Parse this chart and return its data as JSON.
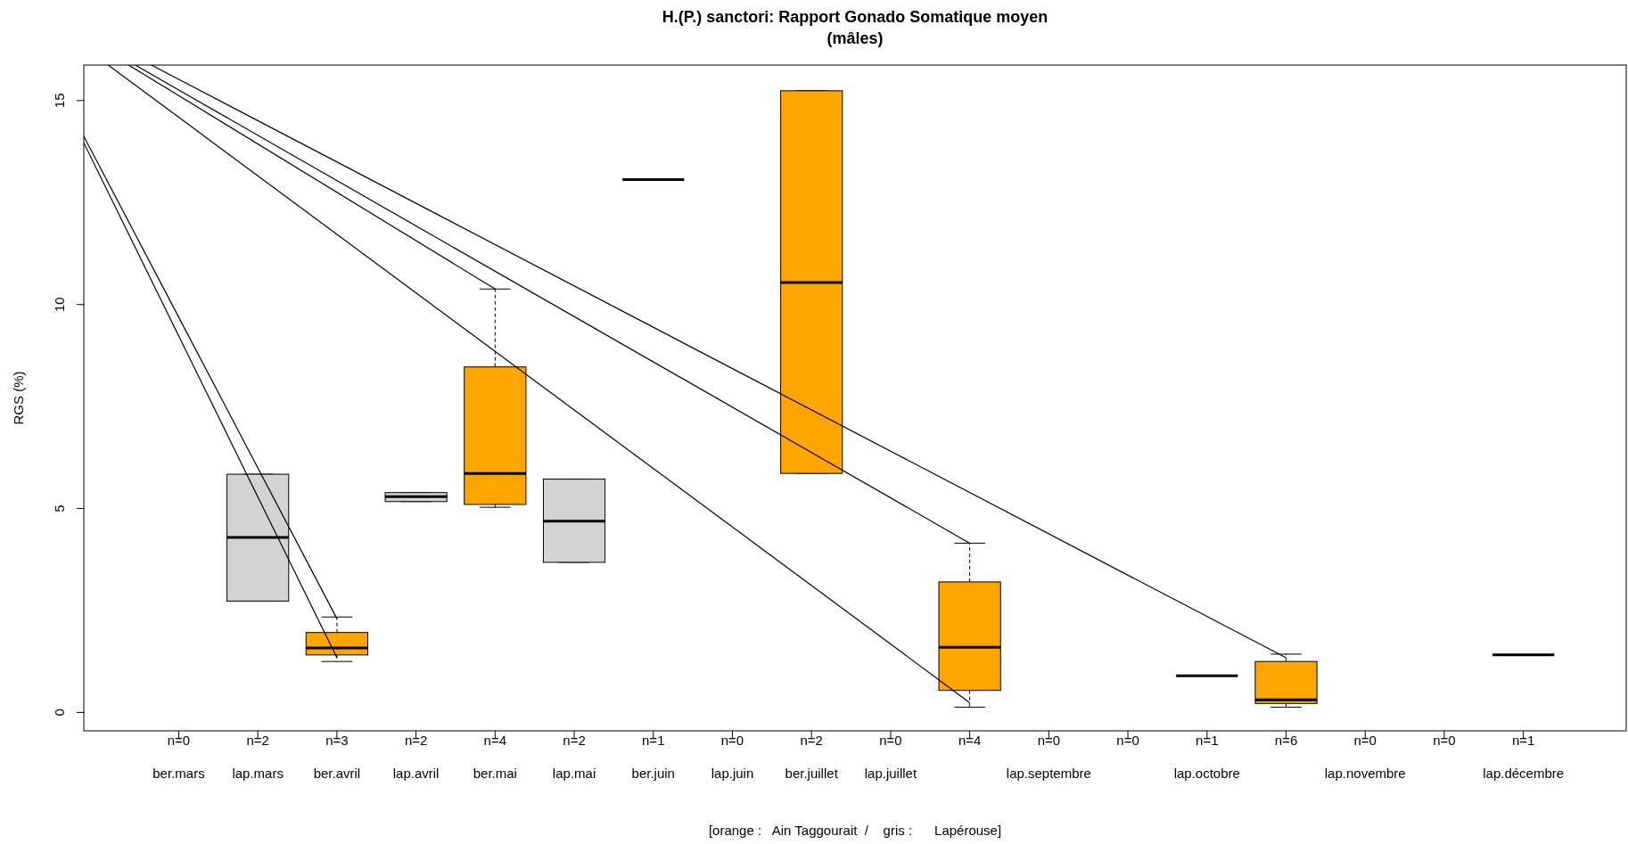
{
  "chart_data": {
    "type": "box",
    "title": "H.(P.) sanctori: Rapport Gonado Somatique moyen\n(mâles)",
    "ylabel": "RGS (%)",
    "categories": [
      "ber.mars",
      "lap.mars",
      "ber.avril",
      "lap.avril",
      "ber.mai",
      "lap.mai",
      "ber.juin",
      "lap.juin",
      "ber.juillet",
      "lap.juillet",
      null,
      "lap.septembre",
      null,
      "lap.octobre",
      null,
      "lap.novembre",
      null,
      "lap.décembre"
    ],
    "value_labels": [
      "n=0",
      "n=2",
      "n=3",
      "n=2",
      "n=4",
      "n=2",
      "n=1",
      "n=0",
      "n=2",
      "n=0",
      "n=4",
      "n=0",
      "n=0",
      "n=1",
      "n=6",
      "n=0",
      "n=0",
      "n=1"
    ],
    "ylim": [
      -0.45,
      15.87
    ],
    "yticks": [
      0,
      5,
      10,
      15
    ],
    "annotations": [
      "[orange :   Ain Taggourait  /    gris :      Lapérouse]"
    ],
    "series": [
      {
        "colors": [
          null,
          null,
          "#ffa500",
          null,
          "#ffa500",
          null,
          "#000000",
          null,
          "#ffa500",
          null,
          "#ffa500",
          null,
          null,
          null,
          "#ffa500",
          null,
          null,
          null
        ],
        "boxes": [
          null,
          null,
          {
            "low": 1.25,
            "q1": 1.41,
            "median": 1.58,
            "q3": 1.96,
            "high": 2.34
          },
          null,
          {
            "low": 5.03,
            "q1": 5.1,
            "median": 5.86,
            "q3": 8.47,
            "high": 10.38
          },
          null,
          {
            "low": 13.06,
            "q1": 13.06,
            "median": 13.06,
            "q3": 13.06,
            "high": 13.06
          },
          null,
          {
            "low": 5.86,
            "q1": 5.86,
            "median": 10.54,
            "q3": 15.24,
            "high": 15.24
          },
          null,
          {
            "low": 0.13,
            "q1": 0.54,
            "median": 1.6,
            "q3": 3.2,
            "high": 4.15
          },
          null,
          null,
          null,
          {
            "low": 0.13,
            "q1": 0.22,
            "median": 0.31,
            "q3": 1.25,
            "high": 1.43
          },
          null,
          null,
          null
        ]
      },
      {
        "colors": [
          null,
          "#d3d3d3",
          null,
          "#d3d3d3",
          null,
          "#d3d3d3",
          null,
          null,
          null,
          null,
          null,
          null,
          null,
          "#000000",
          null,
          null,
          null,
          "#000000"
        ],
        "boxes": [
          null,
          {
            "low": 2.73,
            "q1": 2.73,
            "median": 4.29,
            "q3": 5.84,
            "high": 5.84
          },
          null,
          {
            "low": 5.17,
            "q1": 5.17,
            "median": 5.29,
            "q3": 5.39,
            "high": 5.39
          },
          null,
          {
            "low": 3.68,
            "q1": 3.68,
            "median": 4.69,
            "q3": 5.72,
            "high": 5.72
          },
          null,
          null,
          null,
          null,
          null,
          null,
          null,
          {
            "low": 0.9,
            "q1": 0.9,
            "median": 0.9,
            "q3": 0.9,
            "high": 0.9
          },
          null,
          null,
          null,
          {
            "low": 1.41,
            "q1": 1.41,
            "median": 1.41,
            "q3": 1.41,
            "high": 1.41
          }
        ]
      },
      {
        "type": "line",
        "color": "#000000",
        "values": [
          9.69,
          null,
          2.3,
          null,
          null,
          null,
          null,
          null,
          null,
          null,
          null,
          null,
          null,
          null,
          null,
          null,
          null,
          null
        ]
      },
      {
        "type": "line",
        "color": "#000000",
        "values": [
          9.23,
          null,
          1.34,
          null,
          null,
          null,
          null,
          null,
          null,
          null,
          null,
          null,
          null,
          null,
          null,
          null,
          null,
          null
        ]
      },
      {
        "type": "line",
        "color": "#000000",
        "values": [
          14.59,
          null,
          null,
          null,
          null,
          null,
          null,
          null,
          null,
          null,
          0.24,
          null,
          null,
          null,
          null,
          null,
          null,
          null
        ]
      },
      {
        "type": "line",
        "color": "#000000",
        "values": [
          15.12,
          null,
          null,
          null,
          10.38,
          null,
          null,
          null,
          null,
          null,
          null,
          null,
          null,
          null,
          null,
          null,
          null,
          null
        ]
      },
      {
        "type": "line",
        "color": "#000000",
        "values": [
          15.26,
          null,
          null,
          null,
          null,
          null,
          null,
          null,
          null,
          null,
          4.15,
          null,
          null,
          null,
          null,
          null,
          null,
          null
        ]
      },
      {
        "type": "line",
        "color": "#000000",
        "values": [
          15.52,
          null,
          null,
          null,
          null,
          null,
          null,
          null,
          null,
          null,
          null,
          null,
          null,
          null,
          1.34,
          null,
          null,
          null
        ]
      }
    ]
  }
}
